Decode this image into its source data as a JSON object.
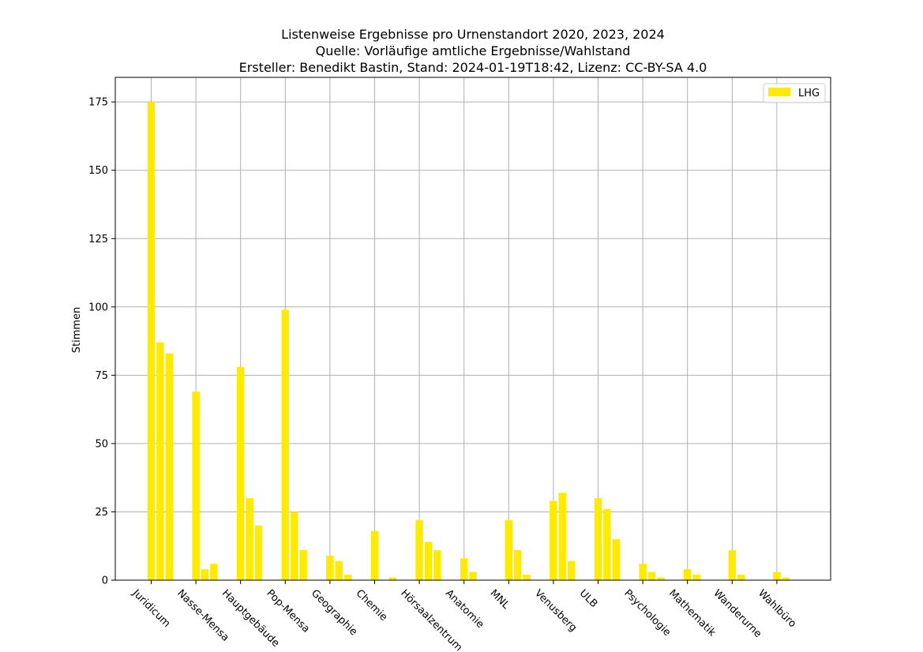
{
  "chart_data": {
    "type": "bar",
    "title_lines": [
      "Listenweise Ergebnisse pro Urnenstandort 2020, 2023, 2024",
      "Quelle: Vorläufige amtliche Ergebnisse/Wahlstand",
      "Ersteller: Benedikt Bastin, Stand: 2024-01-19T18:42, Lizenz: CC-BY-SA 4.0"
    ],
    "xlabel": "",
    "ylabel": "Stimmen",
    "ylim": [
      0,
      184
    ],
    "yticks": [
      0,
      25,
      50,
      75,
      100,
      125,
      150,
      175
    ],
    "grid": true,
    "legend_position": "top-right",
    "bar_color": "#FFEB00",
    "categories": [
      "Juridicum",
      "Nasse-Mensa",
      "Hauptgebäude",
      "Pop-Mensa",
      "Geographie",
      "Chemie",
      "Hörsaalzentrum",
      "Anatomie",
      "MNL",
      "Venusberg",
      "ULB",
      "Psychologie",
      "Mathematik",
      "Wanderurne",
      "Wahlbüro"
    ],
    "years": [
      "2020",
      "2023",
      "2024"
    ],
    "series": [
      {
        "name": "LHG",
        "values": [
          [
            175,
            87,
            83
          ],
          [
            69,
            4,
            6
          ],
          [
            78,
            30,
            20
          ],
          [
            99,
            25,
            11
          ],
          [
            9,
            7,
            2
          ],
          [
            18,
            0,
            1
          ],
          [
            22,
            14,
            11
          ],
          [
            8,
            3,
            0
          ],
          [
            22,
            11,
            2
          ],
          [
            29,
            32,
            7
          ],
          [
            30,
            26,
            15
          ],
          [
            6,
            3,
            1
          ],
          [
            4,
            2,
            0
          ],
          [
            11,
            2,
            0
          ],
          [
            3,
            1,
            0
          ]
        ]
      }
    ]
  }
}
